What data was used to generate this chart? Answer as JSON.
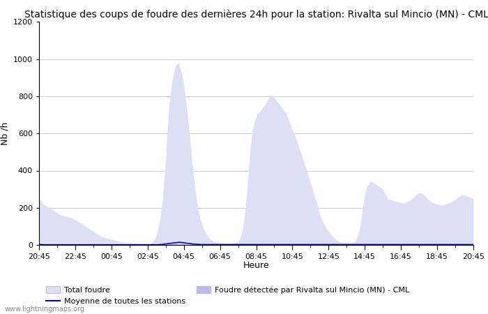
{
  "title": "Statistique des coups de foudre des dernières 24h pour la station: Rivalta sul Mincio (MN) - CML",
  "ylabel": "Nb /h",
  "xlabel": "Heure",
  "watermark": "www.lightningmaps.org",
  "ylim": [
    0,
    1200
  ],
  "yticks": [
    0,
    200,
    400,
    600,
    800,
    1000,
    1200
  ],
  "xtick_labels": [
    "20:45",
    "22:45",
    "00:45",
    "02:45",
    "04:45",
    "06:45",
    "08:45",
    "10:45",
    "12:45",
    "14:45",
    "16:45",
    "18:45",
    "20:45"
  ],
  "fill_color_total": "#dde0f5",
  "fill_color_station": "#b8bcee",
  "line_color_avg": "#0000cc",
  "legend_total": "Total foudre",
  "legend_avg": "Moyenne de toutes les stations",
  "legend_station": "Foudre détectée par Rivalta sul Mincio (MN) - CML",
  "title_fontsize": 10,
  "axis_fontsize": 9,
  "tick_fontsize": 8,
  "total_foudre": [
    250,
    240,
    230,
    220,
    215,
    210,
    205,
    200,
    195,
    190,
    185,
    180,
    175,
    170,
    165,
    162,
    160,
    158,
    155,
    152,
    150,
    148,
    145,
    142,
    138,
    135,
    130,
    125,
    120,
    115,
    110,
    105,
    100,
    95,
    90,
    85,
    80,
    75,
    70,
    65,
    60,
    55,
    50,
    45,
    42,
    40,
    38,
    36,
    34,
    32,
    30,
    28,
    26,
    24,
    22,
    20,
    18,
    17,
    16,
    15,
    14,
    13,
    12,
    11,
    10,
    10,
    9,
    9,
    8,
    8,
    8,
    7,
    7,
    7,
    7,
    7,
    8,
    10,
    15,
    25,
    40,
    60,
    90,
    130,
    180,
    250,
    340,
    450,
    580,
    700,
    790,
    850,
    900,
    940,
    965,
    975,
    980,
    960,
    930,
    890,
    840,
    780,
    710,
    640,
    560,
    480,
    400,
    330,
    265,
    210,
    170,
    140,
    115,
    90,
    75,
    60,
    50,
    40,
    32,
    25,
    20,
    18,
    16,
    14,
    12,
    11,
    10,
    9,
    9,
    8,
    8,
    8,
    8,
    9,
    10,
    12,
    15,
    20,
    30,
    50,
    80,
    130,
    200,
    280,
    380,
    480,
    560,
    620,
    660,
    680,
    700,
    710,
    720,
    730,
    740,
    750,
    760,
    775,
    790,
    800,
    810,
    800,
    790,
    780,
    770,
    760,
    750,
    740,
    730,
    720,
    710,
    690,
    670,
    650,
    630,
    610,
    590,
    570,
    550,
    525,
    500,
    480,
    455,
    430,
    405,
    380,
    355,
    330,
    305,
    280,
    255,
    230,
    200,
    175,
    150,
    130,
    115,
    100,
    88,
    76,
    65,
    55,
    46,
    38,
    30,
    25,
    20,
    18,
    17,
    16,
    15,
    14,
    13,
    12,
    12,
    12,
    14,
    18,
    25,
    40,
    65,
    100,
    150,
    210,
    265,
    300,
    320,
    330,
    340,
    340,
    335,
    330,
    325,
    320,
    315,
    310,
    305,
    295,
    280,
    265,
    250,
    245,
    242,
    240,
    238,
    236,
    234,
    232,
    230,
    228,
    226,
    224,
    225,
    230,
    235,
    240,
    245,
    250,
    258,
    265,
    272,
    278,
    282,
    280,
    275,
    268,
    260,
    252,
    245,
    238,
    232,
    228,
    225,
    222,
    220,
    218,
    215,
    215,
    216,
    218,
    220,
    222,
    225,
    228,
    232,
    236,
    242,
    248,
    255,
    260,
    265,
    268,
    270,
    268,
    265,
    262,
    259,
    256,
    253,
    252
  ],
  "station_foudre": [
    3,
    3,
    3,
    2,
    2,
    2,
    2,
    2,
    2,
    2,
    2,
    2,
    2,
    2,
    2,
    2,
    2,
    2,
    2,
    2,
    2,
    2,
    2,
    2,
    2,
    2,
    2,
    2,
    2,
    2,
    2,
    2,
    2,
    2,
    2,
    2,
    2,
    2,
    2,
    2,
    2,
    2,
    2,
    2,
    2,
    2,
    2,
    2,
    2,
    2,
    2,
    2,
    2,
    1,
    1,
    1,
    1,
    1,
    1,
    1,
    1,
    1,
    1,
    1,
    1,
    1,
    1,
    1,
    1,
    1,
    1,
    1,
    1,
    1,
    1,
    1,
    1,
    1,
    1,
    1,
    1,
    1,
    1,
    1,
    2,
    2,
    3,
    3,
    4,
    5,
    6,
    6,
    6,
    6,
    5,
    5,
    5,
    5,
    4,
    4,
    4,
    4,
    3,
    3,
    3,
    3,
    3,
    2,
    2,
    2,
    2,
    2,
    2,
    2,
    1,
    1,
    1,
    1,
    1,
    1,
    1,
    1,
    1,
    1,
    1,
    1,
    1,
    1,
    1,
    1,
    1,
    1,
    1,
    1,
    1,
    1,
    1,
    1,
    1,
    1,
    1,
    1,
    1,
    1,
    2,
    2,
    2,
    3,
    3,
    3,
    3,
    3,
    3,
    3,
    3,
    3,
    3,
    3,
    3,
    3,
    3,
    3,
    3,
    3,
    3,
    3,
    3,
    3,
    3,
    3,
    3,
    3,
    3,
    3,
    3,
    3,
    3,
    3,
    3,
    3,
    3,
    3,
    3,
    3,
    3,
    3,
    3,
    3,
    3,
    2,
    2,
    2,
    2,
    2,
    2,
    2,
    2,
    2,
    2,
    2,
    2,
    2,
    2,
    2,
    2,
    2,
    2,
    1,
    1,
    1,
    1,
    1,
    1,
    1,
    1,
    1,
    1,
    1,
    1,
    1,
    1,
    1,
    1,
    1,
    1,
    1,
    1,
    1,
    1,
    1,
    1,
    1,
    1,
    1,
    1,
    1,
    1,
    1,
    1,
    1,
    1,
    1,
    1,
    1,
    1,
    1,
    1,
    1,
    1,
    1,
    1,
    1,
    1,
    1,
    1,
    1,
    1,
    1,
    1,
    1,
    1,
    1,
    1,
    1,
    1,
    1,
    1,
    1,
    1,
    1,
    1,
    1,
    1,
    1,
    1,
    1,
    1,
    1,
    1,
    1,
    1,
    1,
    1,
    1,
    1,
    1,
    1,
    1,
    1,
    1,
    1,
    1,
    1,
    1,
    1,
    1,
    1,
    1,
    1,
    1
  ],
  "avg_stations": [
    2,
    2,
    2,
    1,
    1,
    1,
    1,
    1,
    1,
    1,
    1,
    1,
    1,
    1,
    1,
    1,
    1,
    1,
    1,
    1,
    1,
    1,
    1,
    1,
    1,
    1,
    1,
    1,
    1,
    1,
    1,
    1,
    1,
    1,
    1,
    1,
    1,
    1,
    1,
    1,
    1,
    1,
    1,
    1,
    1,
    1,
    1,
    1,
    1,
    1,
    1,
    1,
    1,
    1,
    1,
    1,
    1,
    1,
    1,
    1,
    1,
    1,
    1,
    1,
    1,
    1,
    1,
    1,
    1,
    1,
    1,
    1,
    1,
    1,
    1,
    1,
    1,
    1,
    1,
    1,
    1,
    1,
    1,
    2,
    2,
    3,
    4,
    5,
    6,
    7,
    8,
    9,
    10,
    11,
    12,
    13,
    14,
    14,
    13,
    12,
    11,
    10,
    9,
    8,
    7,
    6,
    5,
    4,
    4,
    3,
    3,
    2,
    2,
    2,
    2,
    2,
    2,
    2,
    2,
    2,
    2,
    2,
    2,
    2,
    2,
    2,
    2,
    2,
    2,
    2,
    2,
    2,
    2,
    2,
    2,
    2,
    2,
    2,
    2,
    2,
    2,
    2,
    2,
    2,
    2,
    2,
    2,
    2,
    2,
    2,
    2,
    2,
    2,
    2,
    2,
    2,
    2,
    2,
    2,
    2,
    2,
    2,
    2,
    2,
    2,
    2,
    2,
    2,
    2,
    2,
    2,
    2,
    2,
    2,
    2,
    2,
    2,
    2,
    2,
    2,
    2,
    2,
    2,
    2,
    2,
    2,
    2,
    2,
    2,
    2,
    2,
    2,
    2,
    2,
    2,
    2,
    2,
    2,
    2,
    2,
    2,
    2,
    2,
    2,
    2,
    2,
    2,
    2,
    2,
    2,
    2,
    2,
    2,
    2,
    2,
    2,
    2,
    2,
    2,
    2,
    2,
    2,
    2,
    2,
    2,
    2,
    2,
    2,
    2,
    2,
    2,
    2,
    2,
    2,
    2,
    2,
    2,
    2,
    2,
    2,
    2,
    2,
    2,
    2,
    2,
    2,
    2,
    2,
    2,
    2,
    2,
    2,
    2,
    2,
    2,
    2,
    2,
    2,
    2,
    2,
    2,
    2,
    2,
    2,
    2,
    2,
    2,
    2,
    2,
    2,
    2,
    2,
    2,
    2,
    2,
    2,
    2,
    2,
    2,
    2,
    2,
    2,
    2,
    2,
    2,
    2,
    2,
    2,
    2,
    2,
    2,
    2,
    2,
    2,
    2,
    2,
    2,
    2,
    2,
    2
  ]
}
